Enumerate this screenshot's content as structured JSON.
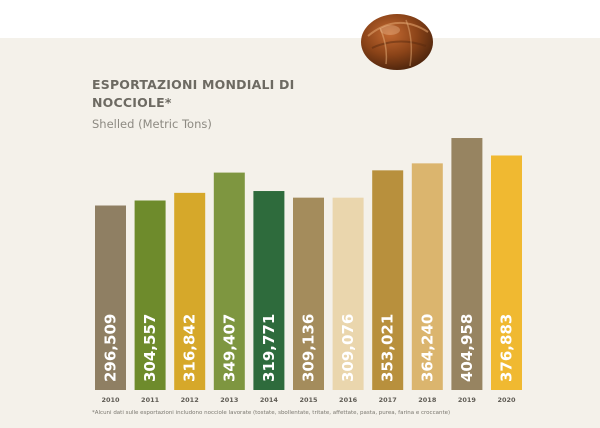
{
  "title": "ESPORTAZIONI MONDIALI DI NOCCIOLE*",
  "subtitle": "Shelled (Metric Tons)",
  "footnote": "*Alcuni dati sulle esportazioni includono nocciole lavorate (tostate, sbollentate, tritate, affettate, pasta, purea, farina e croccante)",
  "chart_data": {
    "type": "bar",
    "categories": [
      "2010",
      "2011",
      "2012",
      "2013",
      "2014",
      "2015",
      "2016",
      "2017",
      "2018",
      "2019",
      "2020"
    ],
    "values": [
      296509,
      304557,
      316842,
      349407,
      319771,
      309136,
      309076,
      353021,
      364240,
      404958,
      376883
    ],
    "value_labels": [
      "296,509",
      "304,557",
      "316,842",
      "349,407",
      "319,771",
      "309,136",
      "309,076",
      "353,021",
      "364,240",
      "404,958",
      "376,883"
    ],
    "colors": [
      "#8f7f63",
      "#6e8b2c",
      "#d6a82a",
      "#7e9640",
      "#2e6b3c",
      "#a48c5c",
      "#ead6ad",
      "#b8903d",
      "#dbb56e",
      "#978461",
      "#f0b931"
    ],
    "ylim": [
      0,
      405000
    ],
    "grid": false,
    "legend": "none"
  }
}
